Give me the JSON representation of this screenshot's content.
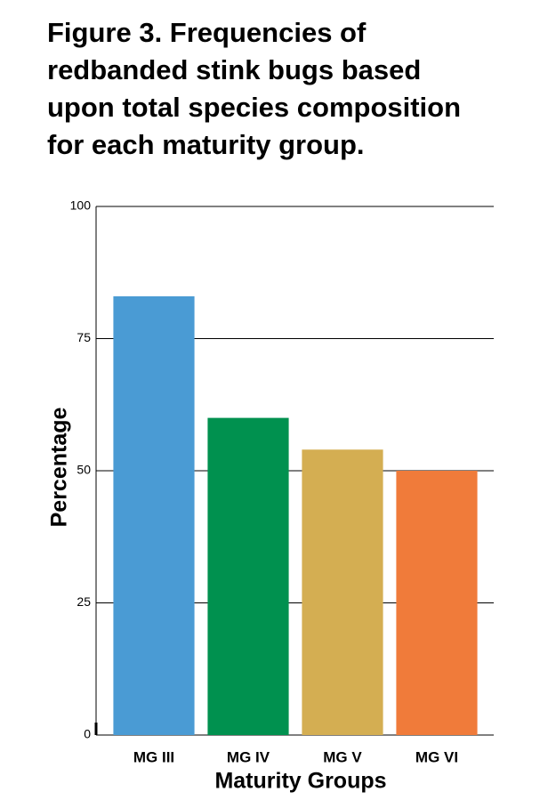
{
  "chart_data": {
    "type": "bar",
    "title": [
      "Figure 3. Frequencies of",
      "redbanded stink bugs based",
      "upon total species composition",
      "for each maturity group."
    ],
    "x_label": "Maturity Groups",
    "y_label": "Percentage",
    "categories": [
      "MG III",
      "MG IV",
      "MG V",
      "MG VI"
    ],
    "values": [
      83,
      60,
      54,
      50
    ],
    "colors": [
      "#4a9bd4",
      "#00914f",
      "#d4ae52",
      "#f07b3a"
    ],
    "ylim": [
      0,
      100
    ],
    "yticks": [
      0,
      25,
      50,
      75,
      100
    ],
    "grid": true
  }
}
